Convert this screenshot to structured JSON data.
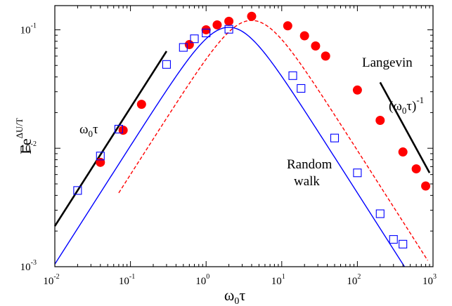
{
  "chart_data": {
    "type": "scatter",
    "xscale": "log",
    "yscale": "log",
    "xlim": [
      0.01,
      1000
    ],
    "ylim": [
      0.001,
      0.16
    ],
    "grid": false,
    "x_ticks": [
      {
        "value": 0.01,
        "base": "10",
        "exp": "-2"
      },
      {
        "value": 0.1,
        "base": "10",
        "exp": "-1"
      },
      {
        "value": 1,
        "base": "10",
        "exp": "0"
      },
      {
        "value": 10,
        "base": "10",
        "exp": "1"
      },
      {
        "value": 100,
        "base": "10",
        "exp": "2"
      },
      {
        "value": 1000,
        "base": "10",
        "exp": "3"
      }
    ],
    "y_ticks": [
      {
        "value": 0.001,
        "base": "10",
        "exp": "-3"
      },
      {
        "value": 0.01,
        "base": "10",
        "exp": "-2"
      },
      {
        "value": 0.1,
        "base": "10",
        "exp": "-1"
      }
    ],
    "xlabel": {
      "main": "ω",
      "sub": "0",
      "after": "τ"
    },
    "ylabel": {
      "main": "Γe",
      "sup": "ΔU/T"
    },
    "series": [
      {
        "name": "Langevin",
        "marker": "filled-circle",
        "color": "#ff0000",
        "points": [
          [
            0.04,
            0.0076
          ],
          [
            0.08,
            0.0142
          ],
          [
            0.14,
            0.0235
          ],
          [
            0.6,
            0.075
          ],
          [
            1.0,
            0.1
          ],
          [
            1.4,
            0.11
          ],
          [
            2.0,
            0.118
          ],
          [
            4.0,
            0.13
          ],
          [
            12,
            0.108
          ],
          [
            20,
            0.089
          ],
          [
            28,
            0.073
          ],
          [
            38,
            0.06
          ],
          [
            100,
            0.031
          ],
          [
            200,
            0.0172
          ],
          [
            400,
            0.0093
          ],
          [
            600,
            0.0067
          ],
          [
            800,
            0.0048
          ]
        ]
      },
      {
        "name": "Random walk",
        "marker": "open-square",
        "color": "#0000ff",
        "points": [
          [
            0.02,
            0.0044
          ],
          [
            0.04,
            0.0086
          ],
          [
            0.07,
            0.0145
          ],
          [
            0.3,
            0.051
          ],
          [
            0.5,
            0.071
          ],
          [
            0.7,
            0.084
          ],
          [
            1.0,
            0.094
          ],
          [
            2.0,
            0.101
          ],
          [
            14,
            0.041
          ],
          [
            18,
            0.032
          ],
          [
            50,
            0.0122
          ],
          [
            100,
            0.0062
          ],
          [
            200,
            0.0028
          ],
          [
            300,
            0.0017
          ],
          [
            400,
            0.00155
          ]
        ]
      }
    ],
    "fits": [
      {
        "for": "Langevin",
        "style": "dashed",
        "color": "#ff0000",
        "form": "A*x/(1+x^2)",
        "peak": 0.12
      },
      {
        "for": "Random walk",
        "style": "solid",
        "color": "#0000ff",
        "form": "A*x/(1+c*x^2)",
        "peak": 0.105
      }
    ],
    "guide_lines": [
      {
        "label": {
          "text": "ω",
          "sub": "0",
          "after": "τ"
        },
        "points": [
          [
            0.01,
            0.0022
          ],
          [
            0.3,
            0.066
          ]
        ]
      },
      {
        "label": {
          "text": "(ω",
          "sub": "0",
          "after": "τ)",
          "sup": "-1"
        },
        "points": [
          [
            200,
            0.036
          ],
          [
            900,
            0.0062
          ]
        ]
      }
    ],
    "annotations": [
      {
        "text": "Langevin"
      },
      {
        "text": "Random"
      },
      {
        "text": "walk"
      }
    ]
  }
}
